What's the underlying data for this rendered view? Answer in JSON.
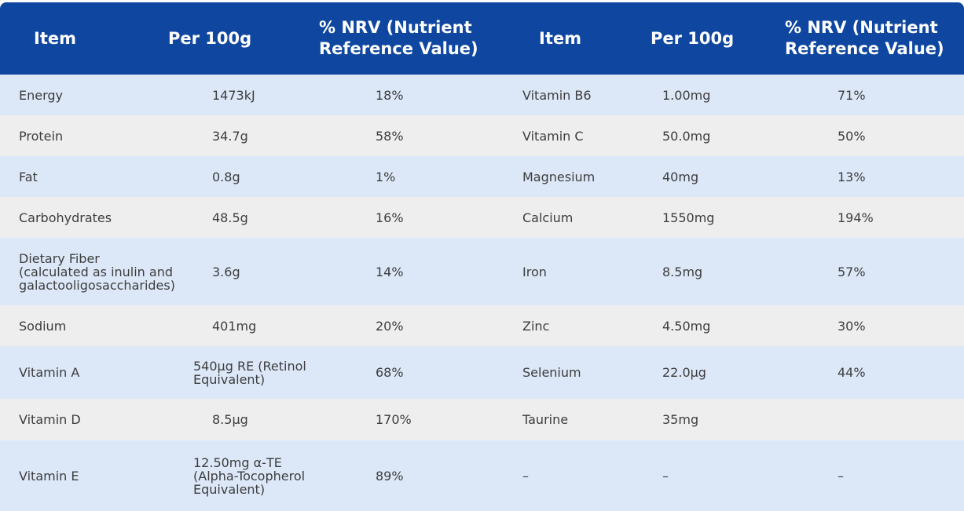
{
  "table": {
    "header": [
      "Item",
      "Per 100g",
      "% NRV (Nutrient Reference Value)",
      "Item",
      "Per 100g",
      "% NRV (Nutrient Reference Value)"
    ],
    "rows": [
      [
        "Energy",
        "1473kJ",
        "18%",
        "Vitamin B6",
        "1.00mg",
        "71%"
      ],
      [
        "Protein",
        "34.7g",
        "58%",
        "Vitamin C",
        "50.0mg",
        "50%"
      ],
      [
        "Fat",
        "0.8g",
        "1%",
        "Magnesium",
        "40mg",
        "13%"
      ],
      [
        "Carbohydrates",
        "48.5g",
        "16%",
        "Calcium",
        "1550mg",
        "194%"
      ],
      [
        "Dietary Fiber\n(calculated as inulin and\ngalactooligosaccharides)",
        "3.6g",
        "14%",
        "Iron",
        "8.5mg",
        "57%"
      ],
      [
        "Sodium",
        "401mg",
        "20%",
        "Zinc",
        "4.50mg",
        "30%"
      ],
      [
        "Vitamin A",
        "540μg RE (Retinol\nEquivalent)",
        "68%",
        "Selenium",
        "22.0μg",
        "44%"
      ],
      [
        "Vitamin D",
        "8.5μg",
        "170%",
        "Taurine",
        "35mg"
      ],
      [
        "Vitamin E",
        "12.50mg α-TE\n(Alpha-Tocopherol\nEquivalent)",
        "89%",
        "–",
        "–",
        "–"
      ]
    ]
  }
}
